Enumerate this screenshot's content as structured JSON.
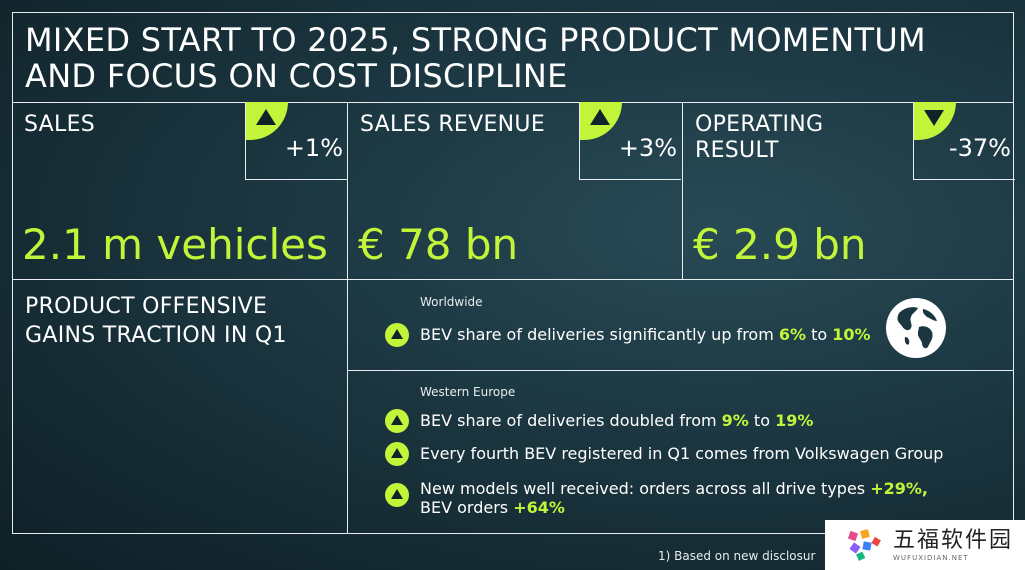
{
  "title": {
    "line1": "MIXED START TO 2025, STRONG PRODUCT MOMENTUM",
    "line2": "AND FOCUS ON COST DISCIPLINE"
  },
  "kpis": [
    {
      "label_lines": [
        "SALES"
      ],
      "delta": "+1%",
      "direction": "up",
      "value": "2.1 m vehicles"
    },
    {
      "label_lines": [
        "SALES REVENUE"
      ],
      "delta": "+3%",
      "direction": "up",
      "value": "€ 78 bn"
    },
    {
      "label_lines": [
        "OPERATING",
        "RESULT"
      ],
      "delta": "-37%",
      "direction": "down",
      "value": "€ 2.9 bn"
    }
  ],
  "product": {
    "heading_lines": [
      "PRODUCT OFFENSIVE",
      "GAINS TRACTION IN Q1"
    ]
  },
  "worldwide": {
    "region": "Worldwide",
    "icon": "globe-icon",
    "bullets": [
      {
        "pre": "BEV share of deliveries significantly up from ",
        "h1": "6%",
        "mid": " to ",
        "h2": "10%"
      }
    ]
  },
  "western_europe": {
    "region": "Western Europe",
    "b1": {
      "pre": "BEV share of deliveries doubled from ",
      "h1": "9%",
      "mid": " to ",
      "h2": "19%"
    },
    "b2": {
      "text": "Every fourth BEV registered in Q1 comes from Volkswagen Group"
    },
    "b3": {
      "pre": "New models well received: orders across all drive types ",
      "h1": "+29%,",
      "line2_pre": "BEV orders ",
      "h2": "+64%"
    }
  },
  "footnote": "1)  Based on new disclosur",
  "watermark": {
    "cn": "五福软件园",
    "en": "WUFUXIDIAN.NET"
  },
  "colors": {
    "accent": "#c2f53a",
    "background": "#1b3640",
    "line": "#e8eef0"
  }
}
